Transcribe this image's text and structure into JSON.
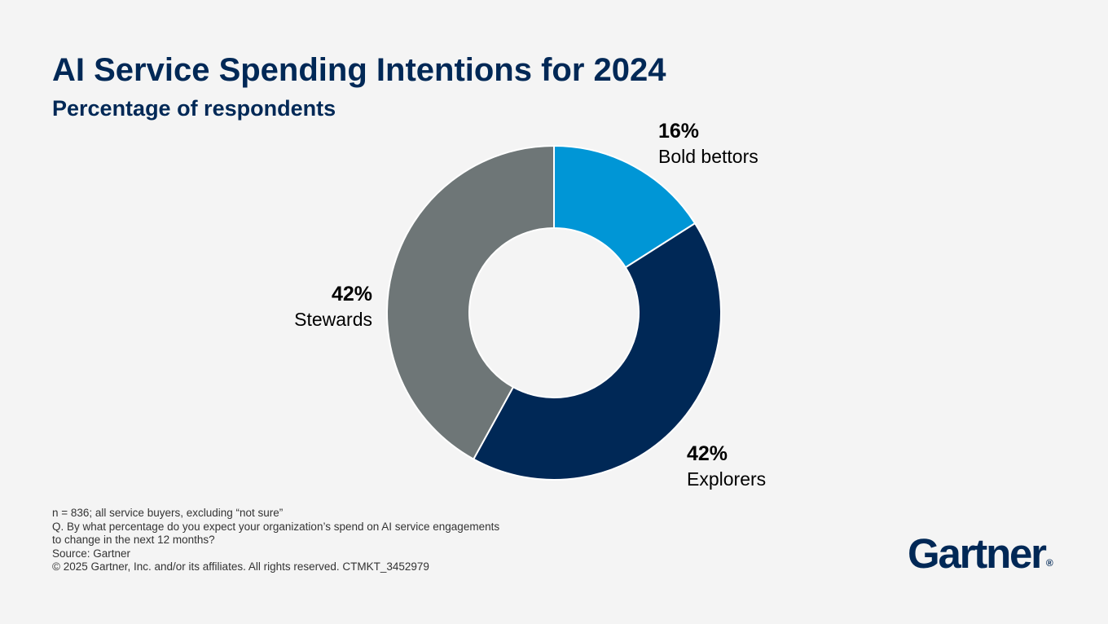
{
  "header": {
    "title": "AI Service Spending Intentions for 2024",
    "subtitle": "Percentage of respondents"
  },
  "chart_data": {
    "type": "pie",
    "title": "AI Service Spending Intentions for 2024",
    "subtitle": "Percentage of respondents",
    "donut": true,
    "slices": [
      {
        "label": "Bold bettors",
        "value": 16,
        "display": "16%",
        "color": "#0096d6"
      },
      {
        "label": "Explorers",
        "value": 42,
        "display": "42%",
        "color": "#002856"
      },
      {
        "label": "Stewards",
        "value": 42,
        "display": "42%",
        "color": "#6e7677"
      }
    ]
  },
  "footnotes": {
    "sample": "n = 836; all service buyers, excluding “not sure”",
    "question_line1": "Q. By what percentage do you expect your organization’s spend on AI service engagements",
    "question_line2": "to change in the next 12 months?",
    "source": "Source: Gartner",
    "copyright": "© 2025 Gartner, Inc. and/or its affiliates. All rights reserved. CTMKT_3452979"
  },
  "logo": {
    "text": "Gartner",
    "mark": "®"
  }
}
